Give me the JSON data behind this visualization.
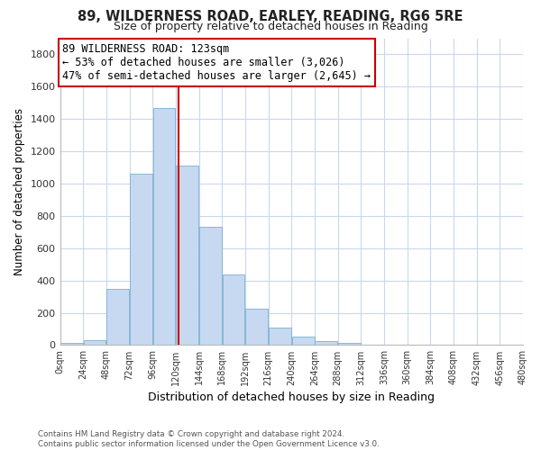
{
  "title": "89, WILDERNESS ROAD, EARLEY, READING, RG6 5RE",
  "subtitle": "Size of property relative to detached houses in Reading",
  "xlabel": "Distribution of detached houses by size in Reading",
  "ylabel": "Number of detached properties",
  "bar_color": "#c6d9f0",
  "bar_edge_color": "#7bafd4",
  "background_color": "#ffffff",
  "grid_color": "#c8d8ee",
  "bin_edges": [
    0,
    24,
    48,
    72,
    96,
    120,
    144,
    168,
    192,
    216,
    240,
    264,
    288,
    312,
    336,
    360,
    384,
    408,
    432,
    456,
    480
  ],
  "bar_heights": [
    15,
    30,
    350,
    1060,
    1470,
    1110,
    735,
    435,
    225,
    110,
    55,
    25,
    15,
    5,
    0,
    0,
    0,
    0,
    0,
    0
  ],
  "property_size": 123,
  "vline_color": "#cc0000",
  "annotation_line1": "89 WILDERNESS ROAD: 123sqm",
  "annotation_line2": "← 53% of detached houses are smaller (3,026)",
  "annotation_line3": "47% of semi-detached houses are larger (2,645) →",
  "annotation_box_edge": "#cc0000",
  "annotation_fontsize": 8.5,
  "footer_text": "Contains HM Land Registry data © Crown copyright and database right 2024.\nContains public sector information licensed under the Open Government Licence v3.0.",
  "ylim": [
    0,
    1900
  ],
  "tick_labels": [
    "0sqm",
    "24sqm",
    "48sqm",
    "72sqm",
    "96sqm",
    "120sqm",
    "144sqm",
    "168sqm",
    "192sqm",
    "216sqm",
    "240sqm",
    "264sqm",
    "288sqm",
    "312sqm",
    "336sqm",
    "360sqm",
    "384sqm",
    "408sqm",
    "432sqm",
    "456sqm",
    "480sqm"
  ],
  "yticks": [
    0,
    200,
    400,
    600,
    800,
    1000,
    1200,
    1400,
    1600,
    1800
  ]
}
